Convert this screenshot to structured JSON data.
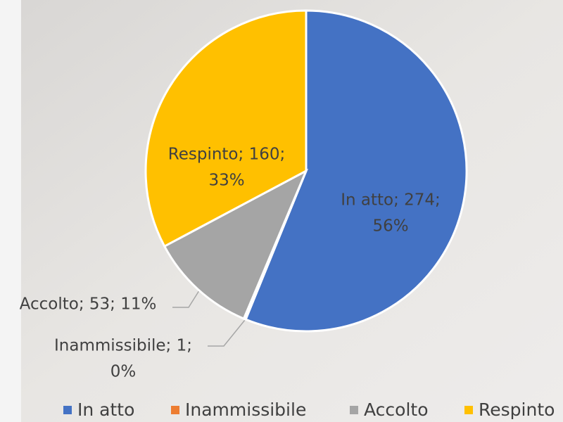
{
  "chart_data": {
    "type": "pie",
    "categories": [
      "In atto",
      "Inammissibile",
      "Accolto",
      "Respinto"
    ],
    "values": [
      274,
      1,
      53,
      160
    ],
    "value_labels": [
      [
        "In atto; 274;",
        "56%"
      ],
      [
        "Inammissibile; 1;",
        "0%"
      ],
      [
        "Accolto; 53; 11%"
      ],
      [
        "Respinto; 160;",
        "33%"
      ]
    ],
    "colors": [
      "#4472c4",
      "#ed7d31",
      "#a5a5a5",
      "#ffc000"
    ],
    "legend": "bottom"
  }
}
